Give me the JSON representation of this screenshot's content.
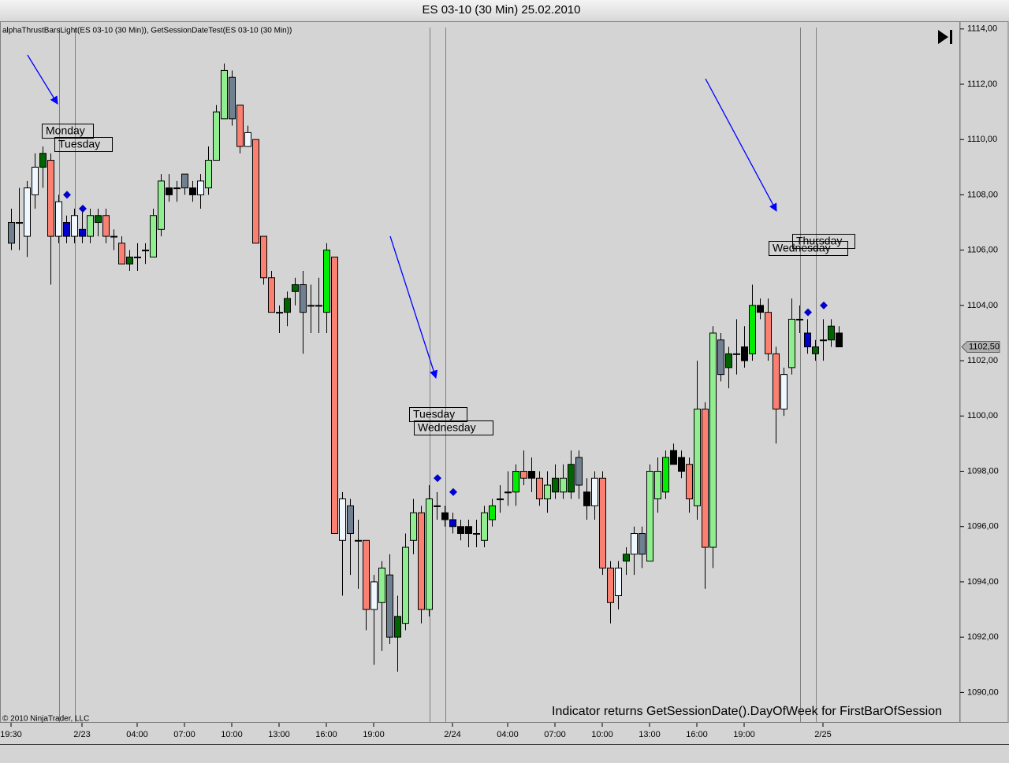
{
  "chart_data": {
    "type": "candlestick",
    "title": "ES 03-10 (30 Min)  25.02.2010",
    "indicator_label": "alphaThrustBarsLight(ES 03-10 (30 Min)), GetSessionDateTest(ES 03-10 (30 Min))",
    "copyright": "© 2010 NinjaTrader, LLC",
    "note": "Indicator returns GetSessionDate().DayOfWeek for FirstBarOfSession",
    "annotations": [
      "Monday",
      "Tuesday",
      "Tuesday",
      "Wednesday",
      "Thursday",
      "Wednesday"
    ],
    "last_price": {
      "value": 1102.5,
      "label": "1102,50"
    },
    "ylim": [
      1088.9,
      1114.25
    ],
    "yticks": [
      {
        "value": 1090,
        "label": "1090,00"
      },
      {
        "value": 1092,
        "label": "1092,00"
      },
      {
        "value": 1094,
        "label": "1094,00"
      },
      {
        "value": 1096,
        "label": "1096,00"
      },
      {
        "value": 1098,
        "label": "1098,00"
      },
      {
        "value": 1100,
        "label": "1100,00"
      },
      {
        "value": 1102,
        "label": "1102,00"
      },
      {
        "value": 1104,
        "label": "1104,00"
      },
      {
        "value": 1106,
        "label": "1106,00"
      },
      {
        "value": 1108,
        "label": "1108,00"
      },
      {
        "value": 1110,
        "label": "1110,00"
      },
      {
        "value": 1112,
        "label": "1112,00"
      },
      {
        "value": 1114,
        "label": "1114,00"
      }
    ],
    "categories": [
      "19:30",
      null,
      null,
      null,
      null,
      null,
      null,
      null,
      null,
      "2/23",
      null,
      null,
      null,
      null,
      null,
      null,
      "04:00",
      null,
      null,
      null,
      null,
      null,
      "07:00",
      null,
      null,
      null,
      null,
      null,
      "10:00",
      null,
      null,
      null,
      null,
      null,
      "13:00",
      null,
      null,
      null,
      null,
      null,
      "16:00",
      null,
      null,
      null,
      null,
      null,
      "19:00",
      null,
      null,
      null,
      null,
      null,
      null,
      null,
      null,
      null,
      "2/24",
      null,
      null,
      null,
      null,
      null,
      null,
      "04:00",
      null,
      null,
      null,
      null,
      null,
      "07:00",
      null,
      null,
      null,
      null,
      null,
      "10:00",
      null,
      null,
      null,
      null,
      null,
      "13:00",
      null,
      null,
      null,
      null,
      null,
      "16:00",
      null,
      null,
      null,
      null,
      null,
      "19:00",
      null,
      null,
      null,
      null,
      null,
      null,
      null,
      null,
      null,
      "2/25",
      null,
      null
    ],
    "open": [
      1107,
      1107,
      1106.5,
      1108,
      1109,
      1109.25,
      1106.5,
      1107,
      1106.5,
      1106.75,
      1106.5,
      1107,
      1107.25,
      1106.5,
      1106.25,
      1105.5,
      1105.75,
      1106,
      1105.75,
      1106.75,
      1108.25,
      1108.25,
      1108.75,
      1108.25,
      1108,
      1108.25,
      1109.25,
      1110.75,
      1112.25,
      1111.25,
      1109.75,
      1110,
      1106.5,
      1105,
      1103.75,
      1103.75,
      1104.5,
      1104.75,
      1104,
      1104,
      1103.75,
      1105.75,
      1095.5,
      1096.75,
      1095.5,
      1095.5,
      1093,
      1093.25,
      1094.25,
      1092,
      1092.5,
      1095.5,
      1096.5,
      1093,
      1096.75,
      1096.5,
      1096.25,
      1096,
      1096,
      1095.75,
      1095.5,
      1096.25,
      1097,
      1097.25,
      1097.25,
      1098,
      1097.75,
      1097.75,
      1097,
      1097.75,
      1097.25,
      1098.25,
      1097.5,
      1097.25,
      1096.75,
      1097.75,
      1094.5,
      1093.5,
      1094.75,
      1095,
      1095.75,
      1094.75,
      1097,
      1097.25,
      1098.75,
      1098.5,
      1098.25,
      1096.75,
      1100.25,
      1095.25,
      1102.75,
      1101.75,
      1102.25,
      1102.5,
      1102.25,
      1104,
      1103.75,
      1102.25,
      1100.25,
      1101.75,
      1103.5,
      1103,
      1102.5,
      1102.75,
      1102.75,
      1103
    ],
    "high": [
      1107.5,
      1108.25,
      1108.5,
      1109.5,
      1109.75,
      1109.5,
      1108,
      1107.25,
      1107.5,
      1107.5,
      1107.5,
      1107.5,
      1107.5,
      1106.75,
      1106.5,
      1106,
      1106.25,
      1106.25,
      1107.5,
      1108.75,
      1108.75,
      1108.5,
      1108.75,
      1108.5,
      1108.75,
      1109.75,
      1111.25,
      1112.75,
      1112.5,
      1111.25,
      1110.5,
      1110,
      1106.5,
      1105.25,
      1104,
      1104.5,
      1105,
      1105.25,
      1104.75,
      1105,
      1106.25,
      1105.75,
      1097.25,
      1097,
      1096.25,
      1095.5,
      1094.25,
      1094.75,
      1095,
      1093.5,
      1095.75,
      1097,
      1096.75,
      1097.5,
      1097.25,
      1096.75,
      1096.5,
      1096.25,
      1096.25,
      1096.25,
      1096.75,
      1097,
      1097.5,
      1098,
      1098.25,
      1098.75,
      1098.5,
      1098,
      1098,
      1098.25,
      1098.25,
      1098.75,
      1098.75,
      1097.75,
      1098,
      1098,
      1094.75,
      1094.75,
      1095.25,
      1096,
      1096,
      1098.25,
      1098.5,
      1098.75,
      1099,
      1098.75,
      1098.5,
      1102,
      1100.5,
      1103.25,
      1103,
      1102.5,
      1103.5,
      1103.25,
      1104.75,
      1104.25,
      1104.25,
      1102.5,
      1101.75,
      1104.25,
      1104,
      1103.5,
      1102.75,
      1103.5,
      1103.5,
      1103.25
    ],
    "low": [
      1106,
      1106,
      1105.75,
      1107.5,
      1108.25,
      1104.75,
      1106.25,
      1106.25,
      1106.25,
      1106.25,
      1106.25,
      1106.5,
      1106.25,
      1106,
      1105.5,
      1105.25,
      1105.25,
      1105.5,
      1105.75,
      1106.5,
      1107.75,
      1107.75,
      1108,
      1107.75,
      1107.5,
      1108,
      1109.25,
      1110.75,
      1110.5,
      1109.5,
      1109.75,
      1106.25,
      1104.75,
      1103.75,
      1103,
      1103.25,
      1104,
      1102.25,
      1103,
      1103,
      1103,
      1095.75,
      1093.5,
      1094.25,
      1093.75,
      1092.25,
      1091,
      1091.5,
      1091.75,
      1090.75,
      1092.25,
      1095,
      1092.5,
      1092.75,
      1096.25,
      1096,
      1095.75,
      1095.5,
      1095.25,
      1095.25,
      1095.25,
      1096,
      1096.5,
      1096.75,
      1096.75,
      1097.5,
      1097.25,
      1096.75,
      1096.5,
      1097,
      1097,
      1097,
      1097,
      1096.25,
      1096.25,
      1094.25,
      1092.5,
      1093,
      1094.25,
      1094.25,
      1094.5,
      1094.75,
      1096.5,
      1097,
      1098.25,
      1097.75,
      1096.5,
      1096.25,
      1093.75,
      1094.5,
      1101.25,
      1101,
      1101.5,
      1101.75,
      1102,
      1103.5,
      1102,
      1099,
      1100,
      1101.5,
      1103,
      1102.25,
      1102,
      1102,
      1102.5,
      1102.5
    ],
    "close": [
      1106.25,
      1107,
      1108.25,
      1109,
      1109.5,
      1106.5,
      1107.75,
      1106.5,
      1107.25,
      1106.5,
      1107.25,
      1107.25,
      1106.5,
      1106.5,
      1105.5,
      1105.75,
      1105.75,
      1106,
      1107.25,
      1108.5,
      1108,
      1108.25,
      1108.25,
      1108,
      1108.5,
      1109.25,
      1111,
      1112.5,
      1110.75,
      1109.75,
      1110.25,
      1106.25,
      1105,
      1103.75,
      1103.75,
      1104.25,
      1104.75,
      1103.75,
      1104,
      1104,
      1106,
      1095.75,
      1097,
      1095.75,
      1095.5,
      1093,
      1094,
      1094.5,
      1092,
      1092.75,
      1095.25,
      1096.5,
      1093,
      1097,
      1096.75,
      1096.25,
      1096,
      1095.75,
      1095.75,
      1095.75,
      1096.5,
      1096.75,
      1097,
      1097.25,
      1098,
      1097.75,
      1098,
      1097,
      1097.5,
      1097.25,
      1097.75,
      1097.25,
      1098.5,
      1096.75,
      1097.75,
      1094.5,
      1093.25,
      1094.5,
      1095,
      1095.75,
      1095,
      1098,
      1098,
      1098.5,
      1098.25,
      1098,
      1097,
      1100.25,
      1095.25,
      1103,
      1101.5,
      1102.25,
      1102.25,
      1102,
      1104,
      1103.75,
      1102.25,
      1100.25,
      1101.5,
      1103.5,
      1103.5,
      1102.5,
      1102.25,
      1102.75,
      1103.25,
      1102.5
    ],
    "colors": [
      "#708090",
      "#000000",
      "#f0f8ff",
      "#f0f8ff",
      "#006400",
      "#fa8072",
      "#f0f8ff",
      "#0000cd",
      "#f0f8ff",
      "#0000cd",
      "#90ee90",
      "#006400",
      "#fa8072",
      "#000000",
      "#fa8072",
      "#006400",
      "#000000",
      "#000000",
      "#90ee90",
      "#90ee90",
      "#000000",
      "#000000",
      "#708090",
      "#000000",
      "#f0f8ff",
      "#90ee90",
      "#90ee90",
      "#90ee90",
      "#708090",
      "#fa8072",
      "#f0f8ff",
      "#fa8072",
      "#fa8072",
      "#fa8072",
      "#000000",
      "#006400",
      "#006400",
      "#708090",
      "#000000",
      "#000000",
      "#00ee00",
      "#fa8072",
      "#f0f8ff",
      "#708090",
      "#000000",
      "#fa8072",
      "#f0f8ff",
      "#90ee90",
      "#708090",
      "#006400",
      "#90ee90",
      "#90ee90",
      "#fa8072",
      "#90ee90",
      "#000000",
      "#000000",
      "#0000cd",
      "#000000",
      "#000000",
      "#000000",
      "#90ee90",
      "#00ee00",
      "#000000",
      "#000000",
      "#00ee00",
      "#fa8072",
      "#000000",
      "#fa8072",
      "#90ee90",
      "#006400",
      "#90ee90",
      "#006400",
      "#708090",
      "#000000",
      "#f0f8ff",
      "#fa8072",
      "#fa8072",
      "#f0f8ff",
      "#006400",
      "#f0f8ff",
      "#708090",
      "#90ee90",
      "#90ee90",
      "#00ee00",
      "#000000",
      "#000000",
      "#fa8072",
      "#90ee90",
      "#fa8072",
      "#90ee90",
      "#708090",
      "#006400",
      "#000000",
      "#000000",
      "#00ee00",
      "#000000",
      "#fa8072",
      "#fa8072",
      "#f0f8ff",
      "#90ee90",
      "#000000",
      "#0000cd",
      "#006400",
      "#000000",
      "#006400",
      "#000000"
    ],
    "signal_color": "#0000cd",
    "signal_values": [
      null,
      null,
      null,
      null,
      null,
      null,
      null,
      1108,
      null,
      1107.5,
      null,
      null,
      null,
      null,
      null,
      null,
      null,
      null,
      null,
      null,
      null,
      null,
      null,
      null,
      null,
      null,
      null,
      null,
      null,
      null,
      null,
      null,
      null,
      null,
      null,
      null,
      null,
      null,
      null,
      null,
      null,
      null,
      null,
      null,
      null,
      null,
      null,
      null,
      null,
      null,
      null,
      null,
      null,
      null,
      1097.75,
      null,
      1097.25,
      null,
      null,
      null,
      null,
      null,
      null,
      null,
      null,
      null,
      null,
      null,
      null,
      null,
      null,
      null,
      null,
      null,
      null,
      null,
      null,
      null,
      null,
      null,
      null,
      null,
      null,
      null,
      null,
      null,
      null,
      null,
      null,
      null,
      null,
      null,
      null,
      null,
      null,
      null,
      null,
      null,
      null,
      null,
      null,
      1103.75,
      null,
      1104,
      null,
      null
    ]
  }
}
